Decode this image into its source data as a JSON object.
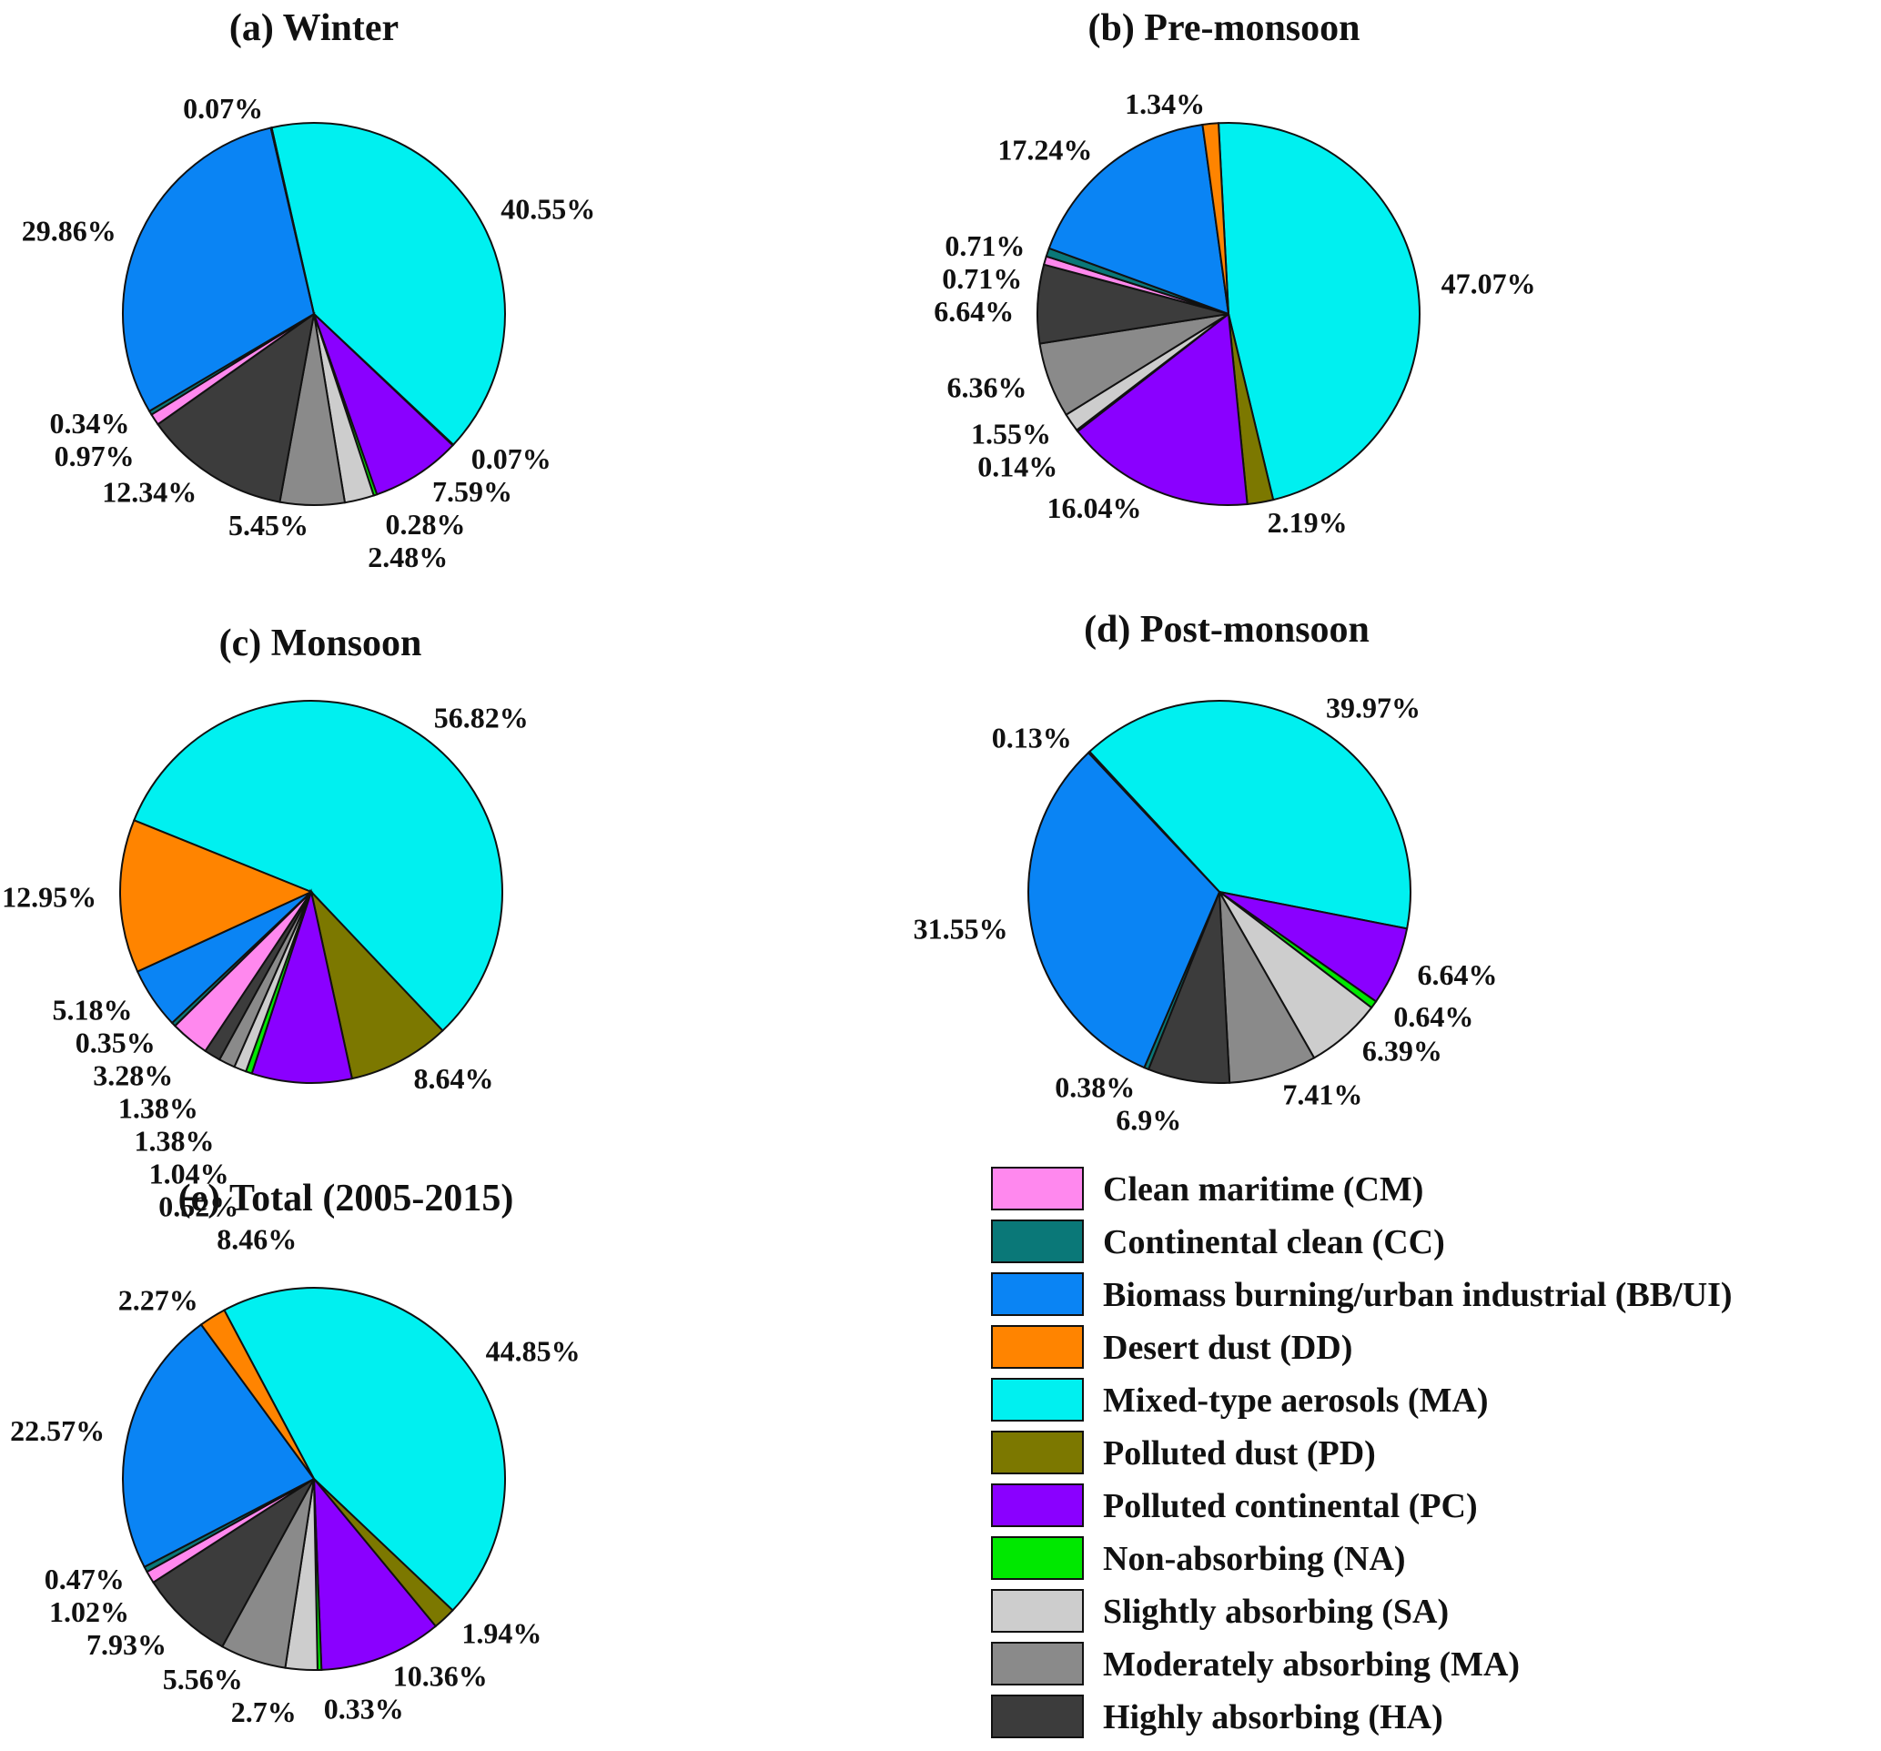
{
  "chart_data": {
    "type": "pie",
    "legend": {
      "placement": "bottom-right",
      "entries": [
        {
          "key": "CM",
          "label": "Clean maritime (CM)",
          "color": "#ff88ee"
        },
        {
          "key": "CC",
          "label": "Continental clean (CC)",
          "color": "#0a7878"
        },
        {
          "key": "BBUI",
          "label": "Biomass burning/urban industrial  (BB/UI)",
          "color": "#0a84f4"
        },
        {
          "key": "DD",
          "label": "Desert dust (DD)",
          "color": "#ff8400"
        },
        {
          "key": "MIX",
          "label": "Mixed-type aerosols (MA)",
          "color": "#00f0f0"
        },
        {
          "key": "PD",
          "label": "Polluted dust (PD)",
          "color": "#7c7800"
        },
        {
          "key": "PC",
          "label": "Polluted continental (PC)",
          "color": "#8a00ff"
        },
        {
          "key": "NA",
          "label": "Non-absorbing (NA)",
          "color": "#00e800"
        },
        {
          "key": "SA",
          "label": "Slightly absorbing (SA)",
          "color": "#cdcdcd"
        },
        {
          "key": "MOD",
          "label": "Moderately absorbing (MA)",
          "color": "#8a8a8a"
        },
        {
          "key": "HA",
          "label": "Highly absorbing (HA)",
          "color": "#3c3c3c"
        }
      ]
    },
    "pies": [
      {
        "title": "(a) Winter",
        "slices": [
          {
            "key": "MIX",
            "value": 40.55,
            "label": "40.55%"
          },
          {
            "key": "PD",
            "value": 0.07,
            "label": "0.07%"
          },
          {
            "key": "PC",
            "value": 7.59,
            "label": "7.59%"
          },
          {
            "key": "NA",
            "value": 0.28,
            "label": "0.28%"
          },
          {
            "key": "SA",
            "value": 2.48,
            "label": "2.48%"
          },
          {
            "key": "MOD",
            "value": 5.45,
            "label": "5.45%"
          },
          {
            "key": "HA",
            "value": 12.34,
            "label": "12.34%"
          },
          {
            "key": "CM",
            "value": 0.97,
            "label": "0.97%"
          },
          {
            "key": "CC",
            "value": 0.34,
            "label": "0.34%"
          },
          {
            "key": "BBUI",
            "value": 29.86,
            "label": "29.86%"
          },
          {
            "key": "DD",
            "value": 0.07,
            "label": "0.07%"
          }
        ]
      },
      {
        "title": "(b) Pre-monsoon",
        "slices": [
          {
            "key": "MIX",
            "value": 47.07,
            "label": "47.07%"
          },
          {
            "key": "PD",
            "value": 2.19,
            "label": "2.19%"
          },
          {
            "key": "PC",
            "value": 16.04,
            "label": "16.04%"
          },
          {
            "key": "NA",
            "value": 0.14,
            "label": "0.14%"
          },
          {
            "key": "SA",
            "value": 1.55,
            "label": "1.55%"
          },
          {
            "key": "MOD",
            "value": 6.36,
            "label": "6.36%"
          },
          {
            "key": "HA",
            "value": 6.64,
            "label": "6.64%"
          },
          {
            "key": "CM",
            "value": 0.71,
            "label": "0.71%"
          },
          {
            "key": "CC",
            "value": 0.71,
            "label": "0.71%"
          },
          {
            "key": "BBUI",
            "value": 17.24,
            "label": "17.24%"
          },
          {
            "key": "DD",
            "value": 1.34,
            "label": "1.34%"
          }
        ]
      },
      {
        "title": "(c) Monsoon",
        "slices": [
          {
            "key": "MIX",
            "value": 56.82,
            "label": "56.82%"
          },
          {
            "key": "PD",
            "value": 8.64,
            "label": "8.64%"
          },
          {
            "key": "PC",
            "value": 8.46,
            "label": "8.46%"
          },
          {
            "key": "NA",
            "value": 0.52,
            "label": "0.52%"
          },
          {
            "key": "SA",
            "value": 1.04,
            "label": "1.04%"
          },
          {
            "key": "MOD",
            "value": 1.38,
            "label": "1.38%"
          },
          {
            "key": "HA",
            "value": 1.38,
            "label": "1.38%"
          },
          {
            "key": "CM",
            "value": 3.28,
            "label": "3.28%"
          },
          {
            "key": "CC",
            "value": 0.35,
            "label": "0.35%"
          },
          {
            "key": "BBUI",
            "value": 5.18,
            "label": "5.18%"
          },
          {
            "key": "DD",
            "value": 12.95,
            "label": "12.95%"
          }
        ]
      },
      {
        "title": "(d) Post-monsoon",
        "slices": [
          {
            "key": "MIX",
            "value": 39.97,
            "label": "39.97%"
          },
          {
            "key": "PC",
            "value": 6.64,
            "label": "6.64%"
          },
          {
            "key": "NA",
            "value": 0.64,
            "label": "0.64%"
          },
          {
            "key": "SA",
            "value": 6.39,
            "label": "6.39%"
          },
          {
            "key": "MOD",
            "value": 7.41,
            "label": "7.41%"
          },
          {
            "key": "HA",
            "value": 6.9,
            "label": "6.9%"
          },
          {
            "key": "CC",
            "value": 0.38,
            "label": "0.38%"
          },
          {
            "key": "BBUI",
            "value": 31.55,
            "label": "31.55%"
          },
          {
            "key": "DD",
            "value": 0.13,
            "label": "0.13%"
          }
        ]
      },
      {
        "title": "(e) Total (2005-2015)",
        "slices": [
          {
            "key": "MIX",
            "value": 44.85,
            "label": "44.85%"
          },
          {
            "key": "PD",
            "value": 1.94,
            "label": "1.94%"
          },
          {
            "key": "PC",
            "value": 10.36,
            "label": "10.36%"
          },
          {
            "key": "NA",
            "value": 0.33,
            "label": "0.33%"
          },
          {
            "key": "SA",
            "value": 2.7,
            "label": "2.7%"
          },
          {
            "key": "MOD",
            "value": 5.56,
            "label": "5.56%"
          },
          {
            "key": "HA",
            "value": 7.93,
            "label": "7.93%"
          },
          {
            "key": "CM",
            "value": 1.02,
            "label": "1.02%"
          },
          {
            "key": "CC",
            "value": 0.47,
            "label": "0.47%"
          },
          {
            "key": "BBUI",
            "value": 22.57,
            "label": "22.57%"
          },
          {
            "key": "DD",
            "value": 2.27,
            "label": "2.27%"
          }
        ]
      }
    ]
  }
}
